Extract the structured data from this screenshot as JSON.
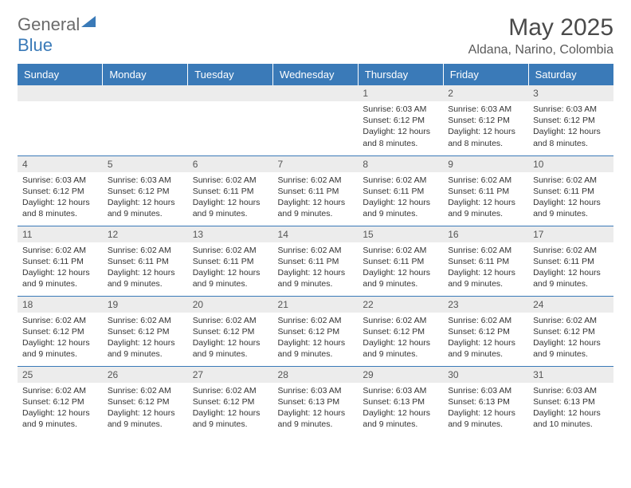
{
  "logo": {
    "text1": "General",
    "text2": "Blue"
  },
  "title": "May 2025",
  "location": "Aldana, Narino, Colombia",
  "colors": {
    "header_bg": "#3a7ab8",
    "daynum_bg": "#ececec",
    "row_divider": "#3a7ab8",
    "text": "#333333",
    "title_text": "#4a4a4a",
    "location_text": "#5a5a5a"
  },
  "typography": {
    "title_fontsize": 30,
    "location_fontsize": 16,
    "header_fontsize": 13,
    "daynum_fontsize": 12,
    "body_fontsize": 10.5
  },
  "weekdays": [
    "Sunday",
    "Monday",
    "Tuesday",
    "Wednesday",
    "Thursday",
    "Friday",
    "Saturday"
  ],
  "weeks": [
    [
      null,
      null,
      null,
      null,
      {
        "n": "1",
        "sunrise": "Sunrise: 6:03 AM",
        "sunset": "Sunset: 6:12 PM",
        "daylight": "Daylight: 12 hours and 8 minutes."
      },
      {
        "n": "2",
        "sunrise": "Sunrise: 6:03 AM",
        "sunset": "Sunset: 6:12 PM",
        "daylight": "Daylight: 12 hours and 8 minutes."
      },
      {
        "n": "3",
        "sunrise": "Sunrise: 6:03 AM",
        "sunset": "Sunset: 6:12 PM",
        "daylight": "Daylight: 12 hours and 8 minutes."
      }
    ],
    [
      {
        "n": "4",
        "sunrise": "Sunrise: 6:03 AM",
        "sunset": "Sunset: 6:12 PM",
        "daylight": "Daylight: 12 hours and 8 minutes."
      },
      {
        "n": "5",
        "sunrise": "Sunrise: 6:03 AM",
        "sunset": "Sunset: 6:12 PM",
        "daylight": "Daylight: 12 hours and 9 minutes."
      },
      {
        "n": "6",
        "sunrise": "Sunrise: 6:02 AM",
        "sunset": "Sunset: 6:11 PM",
        "daylight": "Daylight: 12 hours and 9 minutes."
      },
      {
        "n": "7",
        "sunrise": "Sunrise: 6:02 AM",
        "sunset": "Sunset: 6:11 PM",
        "daylight": "Daylight: 12 hours and 9 minutes."
      },
      {
        "n": "8",
        "sunrise": "Sunrise: 6:02 AM",
        "sunset": "Sunset: 6:11 PM",
        "daylight": "Daylight: 12 hours and 9 minutes."
      },
      {
        "n": "9",
        "sunrise": "Sunrise: 6:02 AM",
        "sunset": "Sunset: 6:11 PM",
        "daylight": "Daylight: 12 hours and 9 minutes."
      },
      {
        "n": "10",
        "sunrise": "Sunrise: 6:02 AM",
        "sunset": "Sunset: 6:11 PM",
        "daylight": "Daylight: 12 hours and 9 minutes."
      }
    ],
    [
      {
        "n": "11",
        "sunrise": "Sunrise: 6:02 AM",
        "sunset": "Sunset: 6:11 PM",
        "daylight": "Daylight: 12 hours and 9 minutes."
      },
      {
        "n": "12",
        "sunrise": "Sunrise: 6:02 AM",
        "sunset": "Sunset: 6:11 PM",
        "daylight": "Daylight: 12 hours and 9 minutes."
      },
      {
        "n": "13",
        "sunrise": "Sunrise: 6:02 AM",
        "sunset": "Sunset: 6:11 PM",
        "daylight": "Daylight: 12 hours and 9 minutes."
      },
      {
        "n": "14",
        "sunrise": "Sunrise: 6:02 AM",
        "sunset": "Sunset: 6:11 PM",
        "daylight": "Daylight: 12 hours and 9 minutes."
      },
      {
        "n": "15",
        "sunrise": "Sunrise: 6:02 AM",
        "sunset": "Sunset: 6:11 PM",
        "daylight": "Daylight: 12 hours and 9 minutes."
      },
      {
        "n": "16",
        "sunrise": "Sunrise: 6:02 AM",
        "sunset": "Sunset: 6:11 PM",
        "daylight": "Daylight: 12 hours and 9 minutes."
      },
      {
        "n": "17",
        "sunrise": "Sunrise: 6:02 AM",
        "sunset": "Sunset: 6:11 PM",
        "daylight": "Daylight: 12 hours and 9 minutes."
      }
    ],
    [
      {
        "n": "18",
        "sunrise": "Sunrise: 6:02 AM",
        "sunset": "Sunset: 6:12 PM",
        "daylight": "Daylight: 12 hours and 9 minutes."
      },
      {
        "n": "19",
        "sunrise": "Sunrise: 6:02 AM",
        "sunset": "Sunset: 6:12 PM",
        "daylight": "Daylight: 12 hours and 9 minutes."
      },
      {
        "n": "20",
        "sunrise": "Sunrise: 6:02 AM",
        "sunset": "Sunset: 6:12 PM",
        "daylight": "Daylight: 12 hours and 9 minutes."
      },
      {
        "n": "21",
        "sunrise": "Sunrise: 6:02 AM",
        "sunset": "Sunset: 6:12 PM",
        "daylight": "Daylight: 12 hours and 9 minutes."
      },
      {
        "n": "22",
        "sunrise": "Sunrise: 6:02 AM",
        "sunset": "Sunset: 6:12 PM",
        "daylight": "Daylight: 12 hours and 9 minutes."
      },
      {
        "n": "23",
        "sunrise": "Sunrise: 6:02 AM",
        "sunset": "Sunset: 6:12 PM",
        "daylight": "Daylight: 12 hours and 9 minutes."
      },
      {
        "n": "24",
        "sunrise": "Sunrise: 6:02 AM",
        "sunset": "Sunset: 6:12 PM",
        "daylight": "Daylight: 12 hours and 9 minutes."
      }
    ],
    [
      {
        "n": "25",
        "sunrise": "Sunrise: 6:02 AM",
        "sunset": "Sunset: 6:12 PM",
        "daylight": "Daylight: 12 hours and 9 minutes."
      },
      {
        "n": "26",
        "sunrise": "Sunrise: 6:02 AM",
        "sunset": "Sunset: 6:12 PM",
        "daylight": "Daylight: 12 hours and 9 minutes."
      },
      {
        "n": "27",
        "sunrise": "Sunrise: 6:02 AM",
        "sunset": "Sunset: 6:12 PM",
        "daylight": "Daylight: 12 hours and 9 minutes."
      },
      {
        "n": "28",
        "sunrise": "Sunrise: 6:03 AM",
        "sunset": "Sunset: 6:13 PM",
        "daylight": "Daylight: 12 hours and 9 minutes."
      },
      {
        "n": "29",
        "sunrise": "Sunrise: 6:03 AM",
        "sunset": "Sunset: 6:13 PM",
        "daylight": "Daylight: 12 hours and 9 minutes."
      },
      {
        "n": "30",
        "sunrise": "Sunrise: 6:03 AM",
        "sunset": "Sunset: 6:13 PM",
        "daylight": "Daylight: 12 hours and 9 minutes."
      },
      {
        "n": "31",
        "sunrise": "Sunrise: 6:03 AM",
        "sunset": "Sunset: 6:13 PM",
        "daylight": "Daylight: 12 hours and 10 minutes."
      }
    ]
  ]
}
